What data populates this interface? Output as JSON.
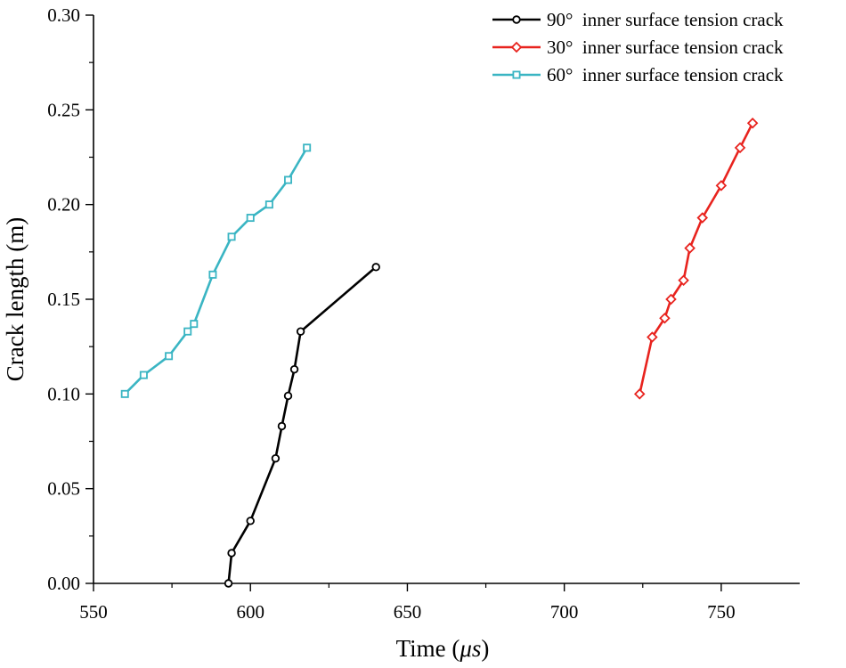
{
  "chart_data": {
    "type": "line",
    "title": "",
    "xlabel": "Time (",
    "xlabel_unit": "μs",
    "xlabel_close": ")",
    "ylabel": "Crack length (m)",
    "xlim": [
      550,
      775
    ],
    "ylim": [
      0,
      0.3
    ],
    "x_ticks": [
      550,
      600,
      650,
      700,
      750
    ],
    "y_ticks": [
      0.0,
      0.05,
      0.1,
      0.15,
      0.2,
      0.25,
      0.3
    ],
    "x_tick_labels": [
      "550",
      "600",
      "650",
      "700",
      "750"
    ],
    "y_tick_labels": [
      "0.00",
      "0.05",
      "0.10",
      "0.15",
      "0.20",
      "0.25",
      "0.30"
    ],
    "grid": false,
    "legend_position": "top-right",
    "series": [
      {
        "name": "90°  inner surface tension crack",
        "color": "#000000",
        "marker": "circle",
        "x": [
          593,
          594,
          600,
          608,
          610,
          612,
          614,
          616,
          640
        ],
        "y": [
          0.0,
          0.016,
          0.033,
          0.066,
          0.083,
          0.099,
          0.113,
          0.133,
          0.167
        ]
      },
      {
        "name": "30°  inner surface tension crack",
        "color": "#e8231e",
        "marker": "diamond",
        "x": [
          724,
          728,
          732,
          734,
          738,
          740,
          744,
          750,
          756,
          760
        ],
        "y": [
          0.1,
          0.13,
          0.14,
          0.15,
          0.16,
          0.177,
          0.193,
          0.21,
          0.23,
          0.243
        ]
      },
      {
        "name": "60°  inner surface tension crack",
        "color": "#3ab5c3",
        "marker": "square",
        "x": [
          560,
          566,
          574,
          580,
          582,
          588,
          594,
          600,
          606,
          612,
          618
        ],
        "y": [
          0.1,
          0.11,
          0.12,
          0.133,
          0.137,
          0.163,
          0.183,
          0.193,
          0.2,
          0.213,
          0.23
        ]
      }
    ]
  }
}
